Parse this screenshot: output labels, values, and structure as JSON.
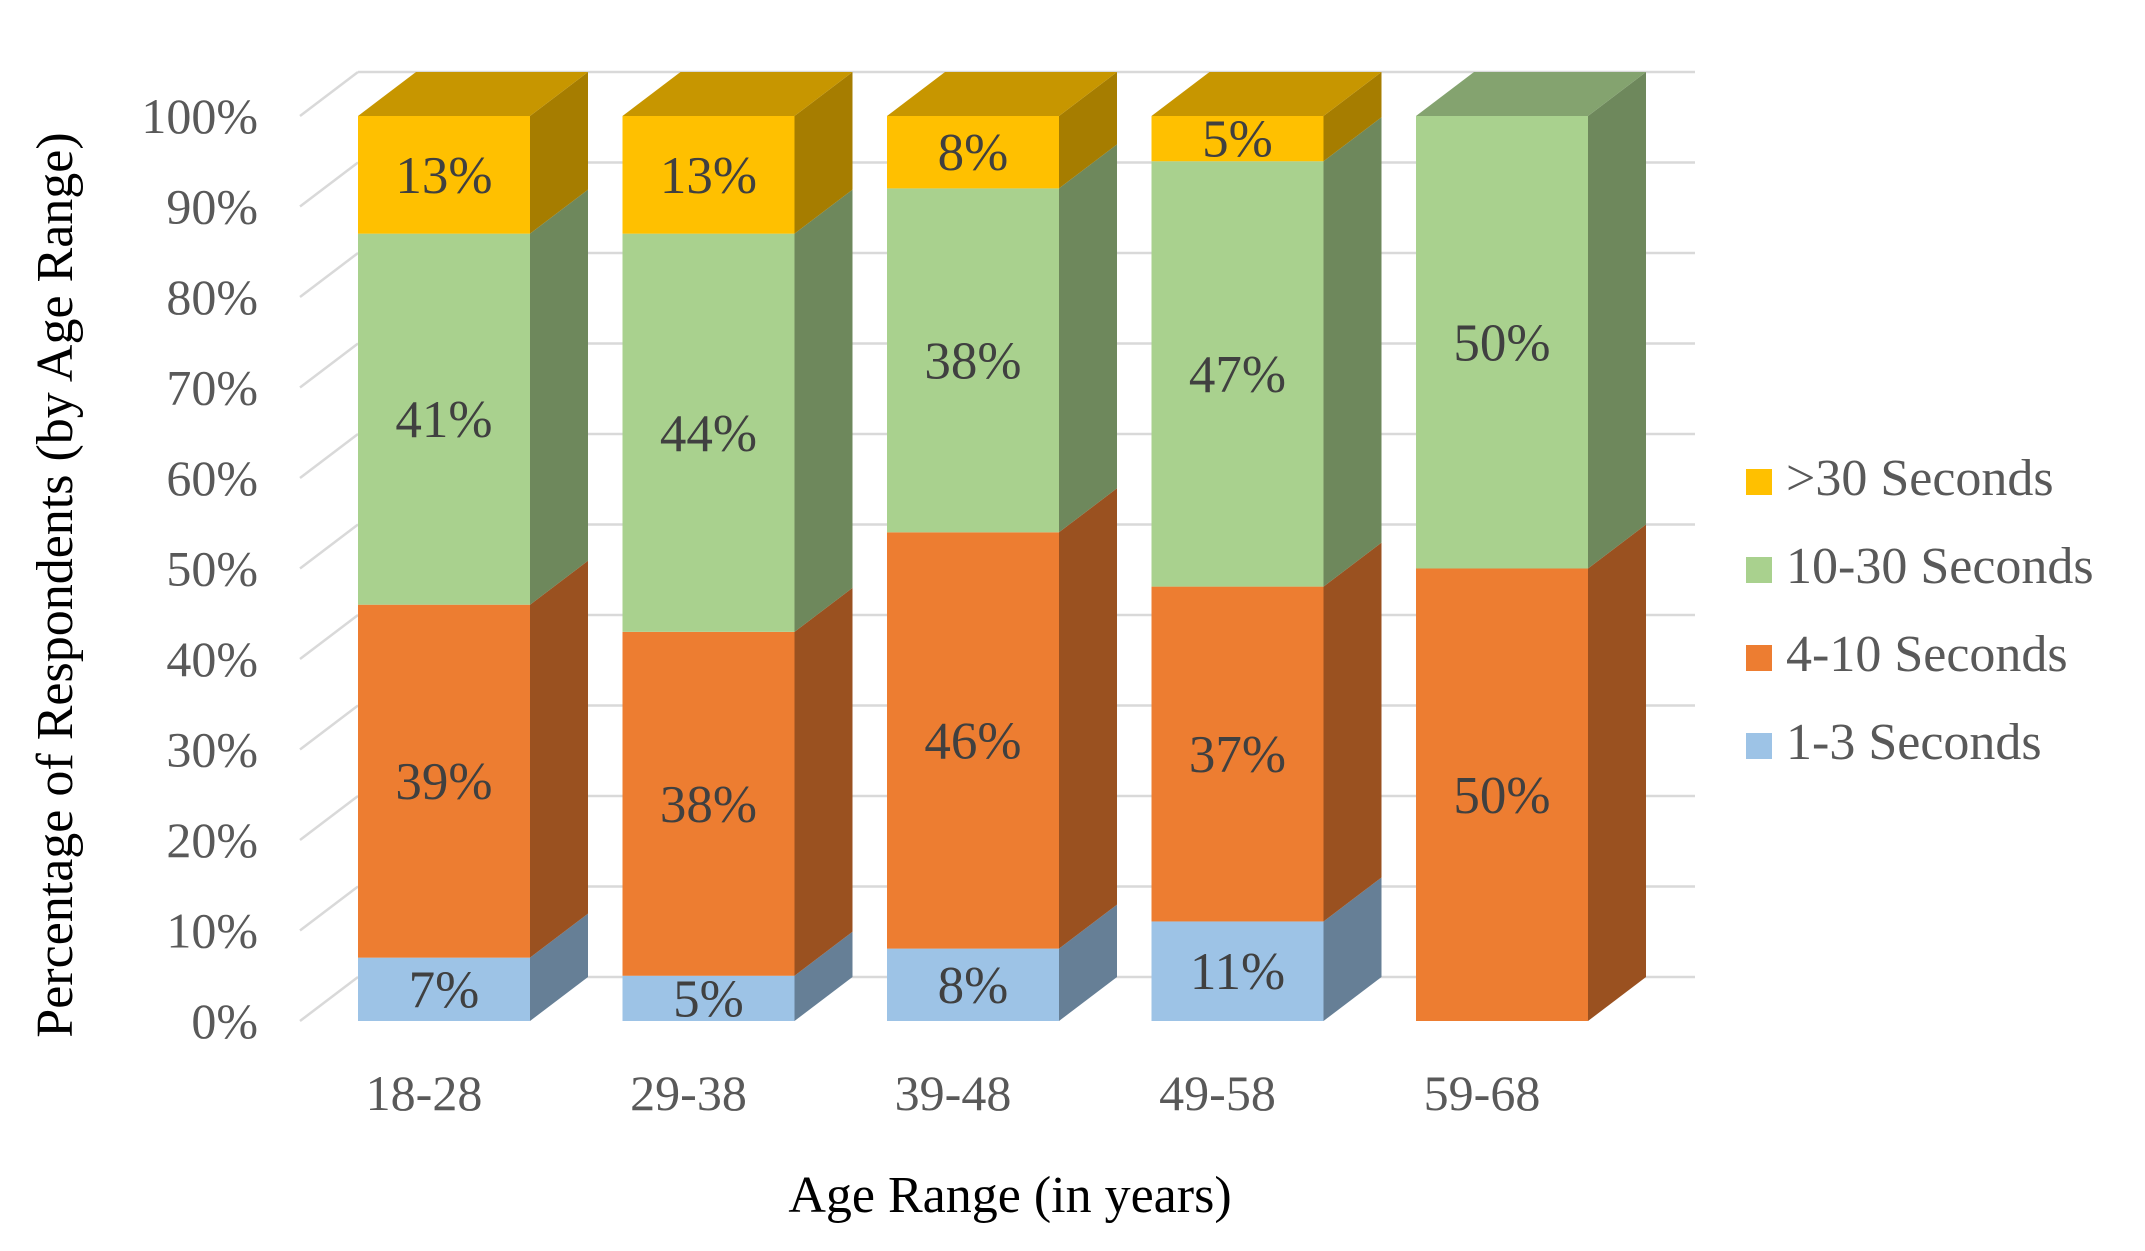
{
  "chart_data": {
    "type": "bar",
    "stacked": true,
    "percent_stacked": true,
    "style": "3d-column",
    "title": "",
    "xlabel": "Age Range (in years)",
    "ylabel": "Percentage of Respondents (by Age Range)",
    "ylim": [
      0,
      100
    ],
    "yticks": [
      "0%",
      "10%",
      "20%",
      "30%",
      "40%",
      "50%",
      "60%",
      "70%",
      "80%",
      "90%",
      "100%"
    ],
    "categories": [
      "18-28",
      "29-38",
      "39-48",
      "49-58",
      "59-68"
    ],
    "series": [
      {
        "name": "1-3 Seconds",
        "color": "#9DC3E6",
        "values": [
          7,
          5,
          8,
          11,
          0
        ],
        "labels": [
          "7%",
          "5%",
          "8%",
          "11%",
          ""
        ]
      },
      {
        "name": "4-10 Seconds",
        "color": "#ED7D31",
        "values": [
          39,
          38,
          46,
          37,
          50
        ],
        "labels": [
          "39%",
          "38%",
          "46%",
          "37%",
          "50%"
        ]
      },
      {
        "name": "10-30 Seconds",
        "color": "#A9D18E",
        "values": [
          41,
          44,
          38,
          47,
          50
        ],
        "labels": [
          "41%",
          "44%",
          "38%",
          "47%",
          "50%"
        ]
      },
      {
        "name": ">30 Seconds",
        "color": "#FFC000",
        "values": [
          13,
          13,
          8,
          5,
          0
        ],
        "labels": [
          "13%",
          "13%",
          "8%",
          "5%",
          ""
        ]
      }
    ],
    "legend_position": "right",
    "gridlines": true
  }
}
